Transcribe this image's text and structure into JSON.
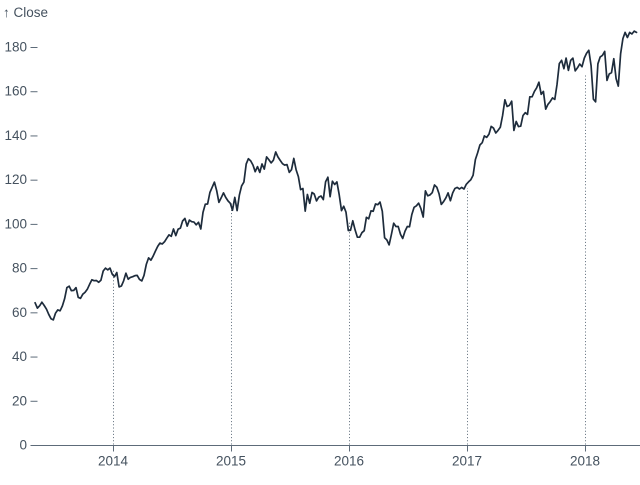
{
  "chart_data": {
    "type": "line",
    "y_axis_label": "↑ Close",
    "x_ticks": [
      2014,
      2015,
      2016,
      2017,
      2018
    ],
    "y_ticks": [
      0,
      20,
      40,
      60,
      80,
      100,
      120,
      140,
      160,
      180
    ],
    "x_domain": [
      2013.34,
      2018.44
    ],
    "y_domain": [
      0,
      190
    ],
    "legend": "none",
    "grid": "dotted vertical rules at year boundaries, from baseline up to the line value",
    "rules": [
      {
        "x": 2014,
        "value": 79.0
      },
      {
        "x": 2015,
        "value": 109.3
      },
      {
        "x": 2016,
        "value": 101.2
      },
      {
        "x": 2017,
        "value": 116.2
      },
      {
        "x": 2018,
        "value": 168.0
      }
    ],
    "series": [
      {
        "name": "Close",
        "x_start": 2013.34,
        "x_step_years": 0.019231,
        "values": [
          64.3,
          61.9,
          63.0,
          64.6,
          63.1,
          61.4,
          59.1,
          57.1,
          56.6,
          59.6,
          61.1,
          60.7,
          62.9,
          66.1,
          71.2,
          71.8,
          69.8,
          69.9,
          71.2,
          66.8,
          66.3,
          68.2,
          69.0,
          70.4,
          72.7,
          74.7,
          74.3,
          74.4,
          73.6,
          74.5,
          78.7,
          80.0,
          79.2,
          80.0,
          77.2,
          76.1,
          78.0,
          71.5,
          71.9,
          74.2,
          77.7,
          75.0,
          75.8,
          76.1,
          76.6,
          76.7,
          74.9,
          74.2,
          76.7,
          81.7,
          84.6,
          83.6,
          85.4,
          87.7,
          89.8,
          91.3,
          90.9,
          91.9,
          93.5,
          95.0,
          94.4,
          97.7,
          94.7,
          97.6,
          98.1,
          101.3,
          102.5,
          99.0,
          101.7,
          101.0,
          100.8,
          99.6,
          100.7,
          97.7,
          105.2,
          108.9,
          109.0,
          114.2,
          116.5,
          118.9,
          115.0,
          109.7,
          111.8,
          114.0,
          112.0,
          110.4,
          109.3,
          106.2,
          112.0,
          106.0,
          113.1,
          117.2,
          118.9,
          127.1,
          129.5,
          128.5,
          126.6,
          123.6,
          125.9,
          123.3,
          127.1,
          124.8,
          130.3,
          129.0,
          127.6,
          128.8,
          132.5,
          130.3,
          128.7,
          127.2,
          126.6,
          126.8,
          123.3,
          124.5,
          129.6,
          124.5,
          121.3,
          115.5,
          116.0,
          105.8,
          113.3,
          109.3,
          114.2,
          113.5,
          110.4,
          112.1,
          112.6,
          111.0,
          119.1,
          121.1,
          112.3,
          119.3,
          117.8,
          119.0,
          113.2,
          106.0,
          108.0,
          105.3,
          97.0,
          97.1,
          101.4,
          97.3,
          94.0,
          94.0,
          96.0,
          96.9,
          103.0,
          102.3,
          105.9,
          105.7,
          109.0,
          108.7,
          109.9,
          105.7,
          93.7,
          92.7,
          90.5,
          95.2,
          100.3,
          98.8,
          98.8,
          95.3,
          93.4,
          96.7,
          98.8,
          98.7,
          104.2,
          107.5,
          108.2,
          109.4,
          106.9,
          103.1,
          114.9,
          112.7,
          113.1,
          114.1,
          117.6,
          116.6,
          113.7,
          108.8,
          110.1,
          111.8,
          114.0,
          110.5,
          114.0,
          116.0,
          116.5,
          115.8,
          116.5,
          115.8,
          117.9,
          119.0,
          120.0,
          122.0,
          129.1,
          132.1,
          135.7,
          136.7,
          139.8,
          139.1,
          140.6,
          144.1,
          143.3,
          141.1,
          142.3,
          143.7,
          149.0,
          156.1,
          153.1,
          153.6,
          155.5,
          142.3,
          146.3,
          144.0,
          144.2,
          149.0,
          150.3,
          149.5,
          157.5,
          157.5,
          159.9,
          161.5,
          164.1,
          158.6,
          159.9,
          151.9,
          154.1,
          155.3,
          157.0,
          156.3,
          163.0,
          172.5,
          174.0,
          170.2,
          175.0,
          169.4,
          174.0,
          175.0,
          169.2,
          170.6,
          172.3,
          171.1,
          175.0,
          177.1,
          178.5,
          171.5,
          156.4,
          155.2,
          172.4,
          175.5,
          176.2,
          178.0,
          164.9,
          167.8,
          168.4,
          174.7,
          165.7,
          162.3,
          176.9,
          183.8,
          186.6,
          184.3,
          186.6,
          185.9,
          187.2,
          186.6
        ]
      }
    ],
    "colors": {
      "line": "#1e2c3c",
      "text": "#45525f",
      "axis": "#5d6b79",
      "rule": "#5d6b79",
      "background": "#ffffff"
    }
  }
}
